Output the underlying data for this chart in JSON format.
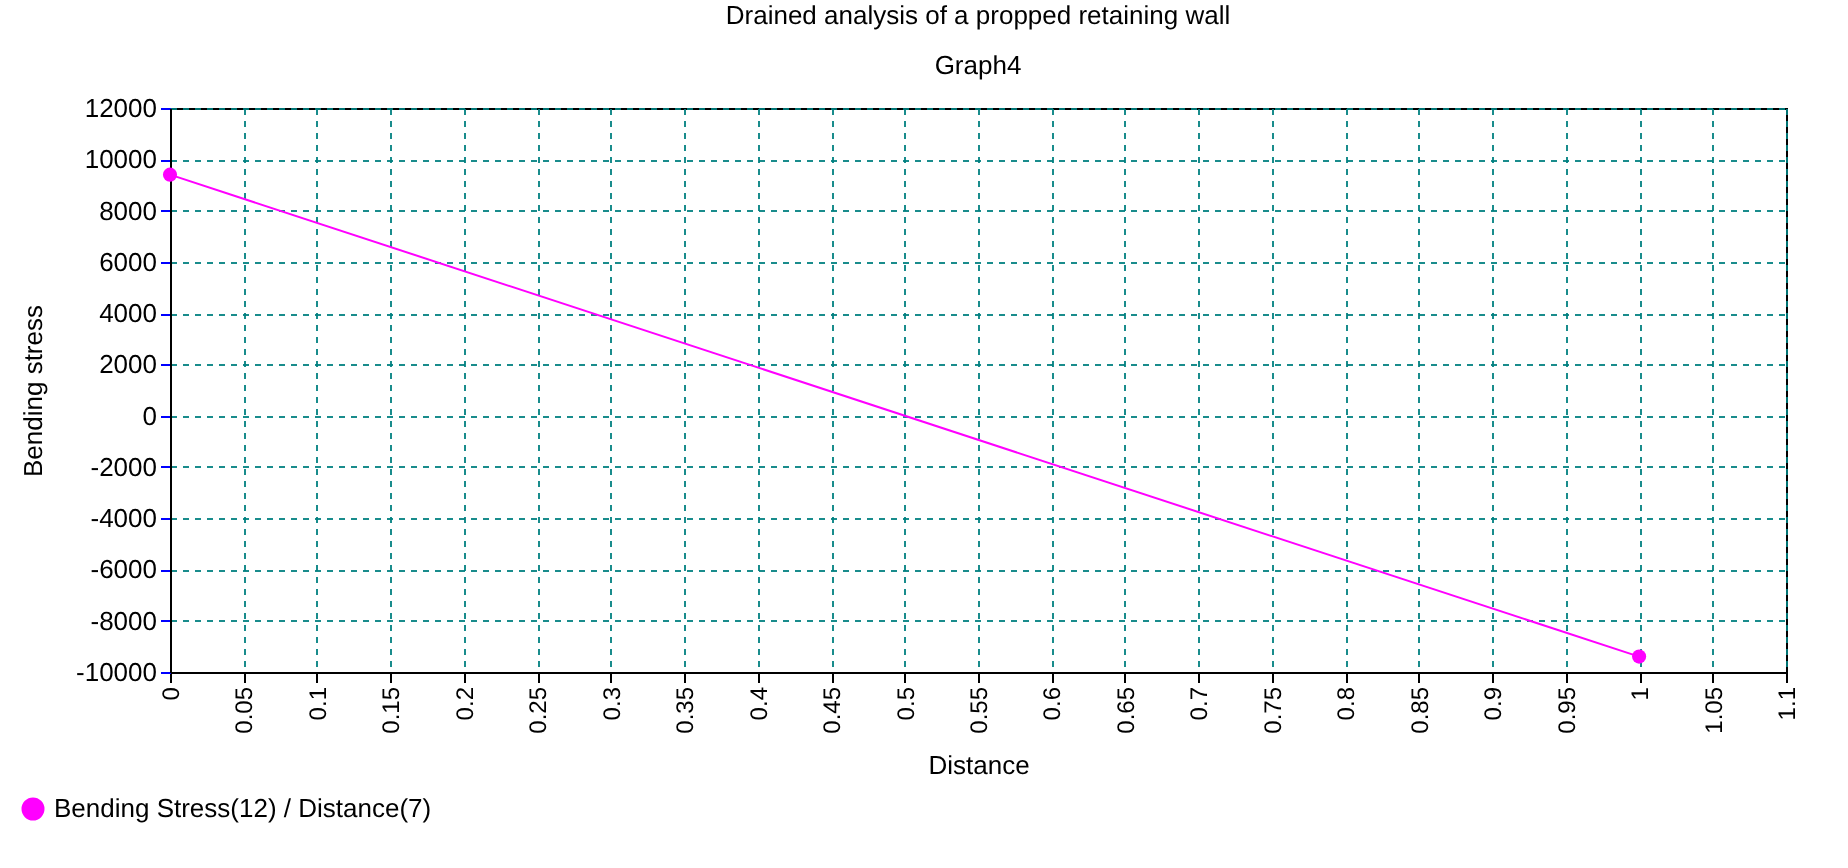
{
  "chart_data": {
    "type": "line",
    "title": "Drained analysis of a propped retaining wall",
    "subtitle": "Graph4",
    "xlabel": "Distance",
    "ylabel": "Bending stress",
    "x": [
      0,
      1
    ],
    "series": [
      {
        "name": "Bending Stress(12) / Distance(7)",
        "color": "#ff00ff",
        "values": [
          9400,
          -9400
        ]
      }
    ],
    "xlim": [
      0,
      1.1
    ],
    "xticks": [
      0,
      0.05,
      0.1,
      0.15,
      0.2,
      0.25,
      0.3,
      0.35,
      0.4,
      0.45,
      0.5,
      0.55,
      0.6,
      0.65,
      0.7,
      0.75,
      0.8,
      0.85,
      0.9,
      0.95,
      1,
      1.05,
      1.1
    ],
    "ylim": [
      -10000,
      12000
    ],
    "yticks": [
      -10000,
      -8000,
      -6000,
      -4000,
      -2000,
      0,
      2000,
      4000,
      6000,
      8000,
      10000,
      12000
    ],
    "grid": true,
    "legend": "bottom left",
    "marker": "circle"
  }
}
